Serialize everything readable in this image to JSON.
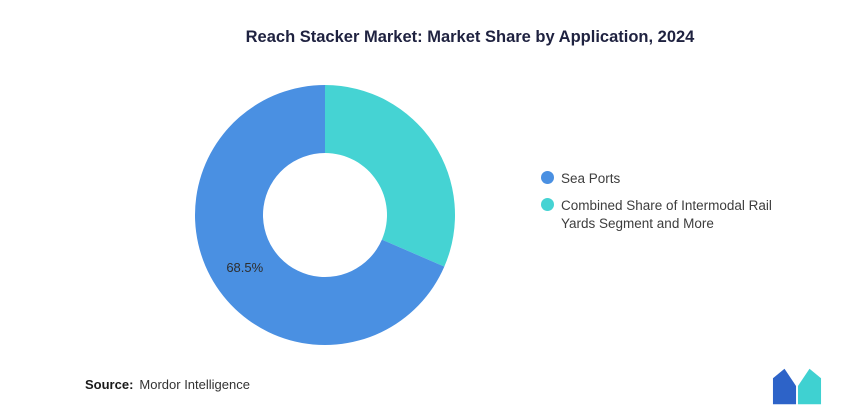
{
  "title": "Reach Stacker Market: Market Share by Application, 2024",
  "chart_data": {
    "type": "pie",
    "subtype": "donut",
    "title": "Reach Stacker Market: Market Share by Application, 2024",
    "series": [
      {
        "name": "Sea Ports",
        "value": 68.5,
        "label": "68.5%",
        "color": "#4A90E2"
      },
      {
        "name": "Combined Share of Intermodal Rail Yards Segment and More",
        "value": 31.5,
        "label": "",
        "color": "#45D3D3"
      }
    ],
    "units": "percent",
    "inner_radius_ratio": 0.475,
    "start_angle_deg": 0,
    "legend_position": "right",
    "data_labels_shown": [
      "68.5%"
    ]
  },
  "footer": {
    "source_label": "Source:",
    "source_value": "Mordor Intelligence"
  },
  "logo": {
    "name": "mordor-intelligence-logo",
    "blue": "#2D63C8",
    "teal": "#3FD1D1"
  }
}
